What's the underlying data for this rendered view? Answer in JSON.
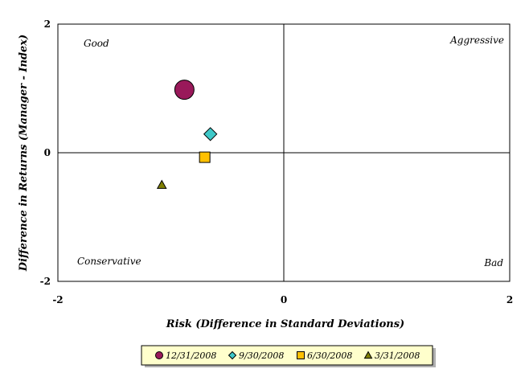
{
  "chart_data": {
    "type": "scatter",
    "title": "",
    "xlabel": "Risk (Difference in Standard Deviations)",
    "ylabel": "Difference in Returns (Manager - Index)",
    "xlim": [
      -2,
      2
    ],
    "ylim": [
      -2,
      2
    ],
    "x_ticks": [
      "-2",
      "0",
      "2"
    ],
    "y_ticks": [
      "2",
      "0",
      "-2"
    ],
    "grid": false,
    "legend_position": "bottom",
    "quadrant_labels": {
      "top_left": "Good",
      "top_right": "Aggressive",
      "bottom_left": "Conservative",
      "bottom_right": "Bad"
    },
    "series": [
      {
        "name": "12/31/2008",
        "marker": "circle",
        "color": "#99195a",
        "x": -0.88,
        "y": 0.98
      },
      {
        "name": "9/30/2008",
        "marker": "diamond",
        "color": "#3ec8c8",
        "x": -0.65,
        "y": 0.29
      },
      {
        "name": "6/30/2008",
        "marker": "square",
        "color": "#ffc000",
        "x": -0.7,
        "y": -0.07
      },
      {
        "name": "3/31/2008",
        "marker": "triangle",
        "color": "#7f7f00",
        "x": -1.08,
        "y": -0.5
      }
    ]
  }
}
